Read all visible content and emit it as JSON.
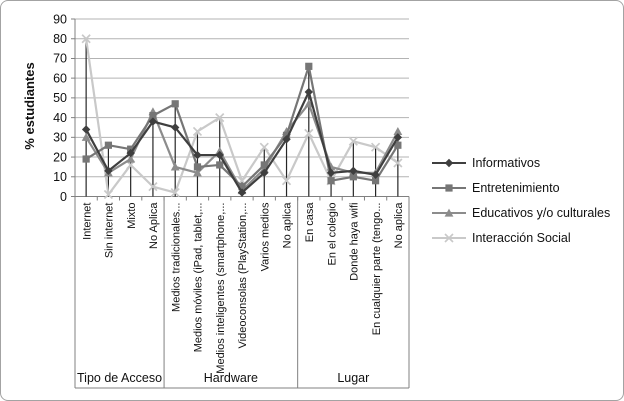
{
  "figure": {
    "background": "#ffffff",
    "border_color": "#a3a3a3",
    "gridline_color": "#b3b3b3",
    "axis_color": "#808080",
    "drop_line_color": "#262626",
    "text_color": "#111111"
  },
  "chart_data": {
    "type": "line",
    "title": "",
    "xlabel": "",
    "ylabel": "% estudiantes",
    "ylim": [
      0,
      90
    ],
    "ytick_step": 10,
    "yticks": [
      0,
      10,
      20,
      30,
      40,
      50,
      60,
      70,
      80,
      90
    ],
    "grid": true,
    "drop_lines": true,
    "legend_position": "right",
    "categories": [
      "Internet",
      "Sin internet",
      "Mixto",
      "No Aplica",
      "Medios tradicionales...",
      "Medios móviles (iPad, tablet,...",
      "Medios inteligentes (smartphone,...",
      "Videoconsolas (PlayStation,...",
      "Varios medios",
      "No aplica",
      "En casa",
      "En el colegio",
      "Donde haya wifi",
      "En cualquier parte (tengo...",
      "No aplica"
    ],
    "groups": [
      {
        "label": "Tipo de Acceso",
        "start": 0,
        "end": 3
      },
      {
        "label": "Hardware",
        "start": 4,
        "end": 9
      },
      {
        "label": "Lugar",
        "start": 10,
        "end": 14
      }
    ],
    "series": [
      {
        "name": "Informativos",
        "marker": "diamond",
        "color": "#3f3f3f",
        "values": [
          34,
          13,
          22,
          38,
          35,
          21,
          21,
          2,
          12,
          29,
          53,
          12,
          13,
          11,
          30
        ]
      },
      {
        "name": "Entretenimiento",
        "marker": "square",
        "color": "#767676",
        "values": [
          19,
          26,
          24,
          41,
          47,
          15,
          16,
          5,
          16,
          31,
          66,
          8,
          10,
          8,
          26
        ]
      },
      {
        "name": "Educativos y/o culturales",
        "marker": "triangle",
        "color": "#8c8c8c",
        "values": [
          30,
          12,
          19,
          43,
          15,
          12,
          23,
          3,
          14,
          33,
          47,
          15,
          12,
          12,
          33
        ]
      },
      {
        "name": "Interacción Social",
        "marker": "x",
        "color": "#c9c9c9",
        "values": [
          80,
          1,
          16,
          5,
          2,
          33,
          40,
          8,
          25,
          8,
          32,
          8,
          28,
          25,
          17
        ]
      }
    ]
  }
}
